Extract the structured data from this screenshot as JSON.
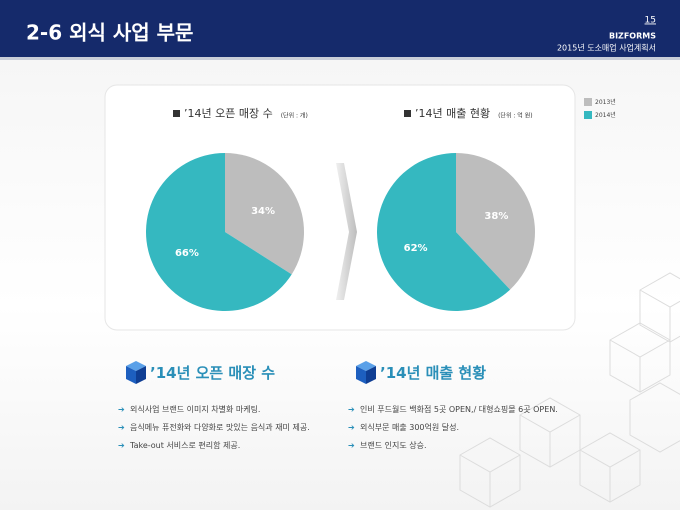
{
  "header": {
    "title": "2-6 외식 사업 부문",
    "page": "15",
    "brand": "BIZFORMS",
    "doc": "2015년 도소매업 사업계획서"
  },
  "chart_data": [
    {
      "type": "pie",
      "title": "’14년 오픈 매장 수",
      "unit": "(단위 : 개)",
      "categories": [
        "2013년",
        "2014년"
      ],
      "values": [
        34,
        66
      ],
      "value_labels": [
        "34%",
        "66%"
      ],
      "colors": [
        "#bdbdbd",
        "#35b8c0"
      ],
      "legend": "right"
    },
    {
      "type": "pie",
      "title": "’14년 매출 현황",
      "unit": "(단위 : 억 원)",
      "categories": [
        "2013년",
        "2014년"
      ],
      "values": [
        38,
        62
      ],
      "value_labels": [
        "38%",
        "62%"
      ],
      "colors": [
        "#bdbdbd",
        "#35b8c0"
      ]
    }
  ],
  "sections": [
    {
      "title": "’14년 오픈 매장 수",
      "bullets": [
        "외식사업 브랜드 이미지 차별화 마케팅.",
        "음식메뉴 퓨전화와 다양화로 맛있는 음식과 재미 제공.",
        "Take-out 서비스로 편리함 제공."
      ]
    },
    {
      "title": "’14년 매출 현황",
      "bullets": [
        "인비 푸드월드 백화점 5곳 OPEN,/ 대형쇼핑몰 6곳 OPEN.",
        "외식부문 매출 300억원 달성.",
        "브랜드 인지도 상승."
      ]
    }
  ]
}
